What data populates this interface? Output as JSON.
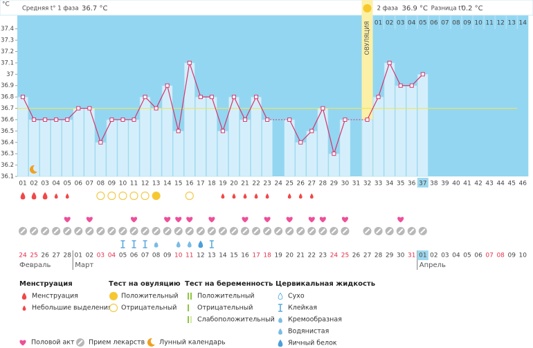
{
  "header": {
    "phase1_label": "Средняя t° 1 фаза",
    "phase1_value": "36.7 °C",
    "phase2_label": "2 фаза",
    "phase2_value": "36.9 °C",
    "diff_label": "Разница t°",
    "diff_value": "0.2 °C"
  },
  "chart_data": {
    "type": "line",
    "y_unit": "°C",
    "categories": [
      "01",
      "02",
      "03",
      "04",
      "05",
      "06",
      "07",
      "08",
      "09",
      "10",
      "11",
      "12",
      "13",
      "14",
      "15",
      "16",
      "17",
      "18",
      "19",
      "20",
      "21",
      "22",
      "23",
      "24",
      "25",
      "26",
      "27",
      "28",
      "29",
      "30",
      "31",
      "32",
      "33",
      "34",
      "35",
      "36",
      "37",
      "38",
      "39",
      "40",
      "41",
      "42",
      "43",
      "44",
      "45",
      "46"
    ],
    "values": [
      36.8,
      36.6,
      36.6,
      36.6,
      36.6,
      36.7,
      36.7,
      36.4,
      36.6,
      36.6,
      36.6,
      36.8,
      36.7,
      36.9,
      36.5,
      37.1,
      36.8,
      36.8,
      36.5,
      36.8,
      36.6,
      36.8,
      36.6,
      null,
      36.6,
      36.4,
      36.5,
      36.7,
      36.3,
      36.6,
      null,
      36.6,
      36.8,
      37.1,
      36.9,
      36.9,
      37.0,
      null,
      null,
      null,
      null,
      null,
      null,
      null,
      null,
      null
    ],
    "color": "#d6336c",
    "bar_color": "#d4effb",
    "background": "#93d6f1",
    "ylim": [
      36.1,
      37.52
    ],
    "yticks": [
      36.1,
      36.2,
      36.3,
      36.4,
      36.5,
      36.6,
      36.7,
      36.8,
      36.9,
      37,
      37.1,
      37.2,
      37.3,
      37.4
    ],
    "coverline": 36.7,
    "coverline_color": "#f0e45a",
    "ovulation": {
      "label": "ОВУЛЯЦИЯ",
      "day": "32"
    },
    "phase2_days": [
      "01",
      "02",
      "03",
      "04",
      "05",
      "06",
      "07",
      "08",
      "09",
      "10",
      "11",
      "12",
      "13",
      "14"
    ],
    "today": "37",
    "moon_day": "02"
  },
  "dates": [
    {
      "month": "Февраль",
      "days": [
        "24",
        "25",
        "26",
        "27",
        "28"
      ],
      "weekends": [
        "24",
        "25"
      ]
    },
    {
      "month": "Март",
      "days": [
        "01",
        "02",
        "03",
        "04",
        "05",
        "06",
        "07",
        "08",
        "09",
        "10",
        "11",
        "12",
        "13",
        "14",
        "15",
        "16",
        "17",
        "18",
        "19",
        "20",
        "21",
        "22",
        "23",
        "24",
        "25",
        "26",
        "27",
        "28",
        "29",
        "30",
        "31"
      ],
      "weekends": [
        "03",
        "04",
        "10",
        "11",
        "17",
        "18",
        "24",
        "25",
        "31"
      ]
    },
    {
      "month": "Апрель",
      "days": [
        "01",
        "02",
        "03",
        "04",
        "05",
        "06",
        "07",
        "08",
        "09",
        "10"
      ],
      "weekends": [
        "07",
        "08"
      ]
    }
  ],
  "daily": {
    "menstruation": [
      0,
      0,
      0,
      1,
      1,
      null,
      null,
      null,
      null,
      null,
      null,
      null,
      null,
      null,
      null,
      null,
      null,
      null,
      1,
      1,
      1,
      1,
      1,
      null,
      1,
      1,
      1,
      null,
      null,
      null,
      null,
      null,
      null,
      null,
      null,
      null,
      null,
      null,
      null,
      null,
      null,
      null,
      null,
      null,
      null,
      null
    ],
    "ovulation_test": [
      null,
      null,
      null,
      null,
      null,
      null,
      null,
      1,
      1,
      1,
      1,
      1,
      0,
      null,
      null,
      1,
      null,
      null,
      null,
      null,
      null,
      null,
      null,
      null,
      null,
      null,
      null,
      null,
      null,
      null,
      null,
      null,
      null,
      null,
      null,
      null,
      null,
      null,
      null,
      null,
      null,
      null,
      null,
      null,
      null,
      null
    ],
    "sex": [
      null,
      null,
      null,
      null,
      0,
      null,
      0,
      null,
      null,
      null,
      0,
      null,
      null,
      0,
      0,
      0,
      null,
      0,
      null,
      null,
      0,
      null,
      0,
      null,
      0,
      null,
      0,
      0,
      null,
      0,
      null,
      null,
      null,
      null,
      0,
      null,
      null,
      null,
      null,
      null,
      null,
      null,
      null,
      null,
      null,
      null
    ],
    "pills": [
      1,
      1,
      1,
      1,
      1,
      1,
      1,
      1,
      1,
      1,
      1,
      1,
      1,
      1,
      1,
      1,
      1,
      1,
      1,
      1,
      1,
      1,
      1,
      1,
      1,
      1,
      1,
      1,
      1,
      1,
      null,
      1,
      1,
      1,
      1,
      1,
      1,
      null,
      null,
      null,
      null,
      null,
      null,
      null,
      null,
      null
    ],
    "cervical": [
      null,
      null,
      null,
      null,
      null,
      null,
      null,
      null,
      null,
      1,
      1,
      1,
      2,
      null,
      3,
      3,
      4,
      1,
      null,
      null,
      null,
      null,
      null,
      null,
      null,
      null,
      null,
      null,
      null,
      null,
      null,
      null,
      null,
      null,
      null,
      null,
      null,
      null,
      null,
      null,
      null,
      null,
      null,
      null,
      null,
      null
    ]
  },
  "legend": {
    "menstruation": {
      "title": "Менструация",
      "items": [
        "Менструация",
        "Небольшие выделения"
      ]
    },
    "ovulation_test": {
      "title": "Тест на овуляцию",
      "items": [
        "Положительный",
        "Отрицательный"
      ]
    },
    "pregnancy_test": {
      "title": "Тест на беременность",
      "items": [
        "Положительный",
        "Отрицательный",
        "Слабоположительный"
      ]
    },
    "cervical": {
      "title": "Цервикальная жидкость",
      "items": [
        "Сухо",
        "Клейкая",
        "Кремообразная",
        "Водянистая",
        "Яичный белок"
      ]
    },
    "other": [
      "Половой акт",
      "Прием лекарств",
      "Лунный календарь"
    ]
  }
}
